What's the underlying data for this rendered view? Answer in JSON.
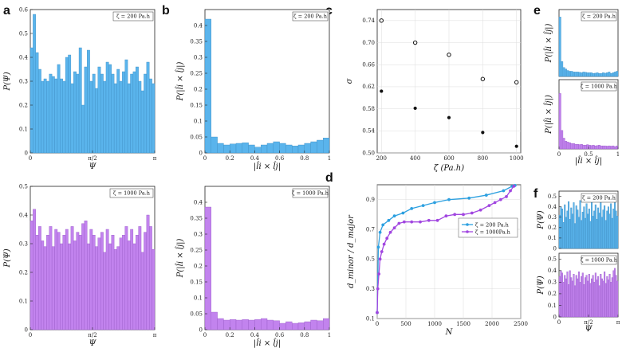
{
  "figure": {
    "panel_labels": [
      "a",
      "b",
      "c",
      "d",
      "e",
      "f"
    ]
  },
  "colors": {
    "blue": "#5ab4ec",
    "blue_edge": "#3f8fc4",
    "purple": "#c283ee",
    "purple_edge": "#9a5cc8",
    "line_blue": "#2da0e0",
    "line_purple": "#a146e0"
  },
  "chart_data": [
    {
      "id": "a_top",
      "type": "bar",
      "legend": "ζ = 200 Pa.h",
      "xlabel": "Ψ",
      "ylabel": "P(Ψ)",
      "ylim": [
        0,
        0.6
      ],
      "yticks": [
        "0",
        "0.1",
        "0.2",
        "0.3",
        "0.4",
        "0.5",
        "0.6"
      ],
      "xticks": [
        "0",
        "π/2",
        "π"
      ],
      "values": [
        0.44,
        0.58,
        0.42,
        0.35,
        0.3,
        0.31,
        0.3,
        0.33,
        0.32,
        0.31,
        0.37,
        0.31,
        0.3,
        0.4,
        0.41,
        0.29,
        0.34,
        0.33,
        0.44,
        0.2,
        0.36,
        0.43,
        0.3,
        0.33,
        0.27,
        0.36,
        0.33,
        0.3,
        0.38,
        0.37,
        0.33,
        0.29,
        0.35,
        0.3,
        0.34,
        0.39,
        0.29,
        0.33,
        0.34,
        0.36,
        0.3,
        0.26,
        0.33,
        0.38,
        0.31,
        0.29
      ]
    },
    {
      "id": "a_bottom",
      "type": "bar",
      "legend": "ζ = 1000 Pa.h",
      "xlabel": "Ψ",
      "ylabel": "P(Ψ)",
      "ylim": [
        0,
        0.5
      ],
      "yticks": [
        "0",
        "0.1",
        "0.2",
        "0.3",
        "0.4",
        "0.5"
      ],
      "xticks": [
        "0",
        "π/2",
        "π"
      ],
      "values": [
        0.38,
        0.42,
        0.33,
        0.36,
        0.31,
        0.29,
        0.33,
        0.36,
        0.29,
        0.35,
        0.34,
        0.3,
        0.33,
        0.35,
        0.3,
        0.36,
        0.31,
        0.34,
        0.33,
        0.37,
        0.38,
        0.3,
        0.35,
        0.33,
        0.29,
        0.32,
        0.34,
        0.27,
        0.35,
        0.3,
        0.33,
        0.28,
        0.29,
        0.32,
        0.33,
        0.36,
        0.31,
        0.35,
        0.3,
        0.33,
        0.36,
        0.27,
        0.34,
        0.4,
        0.36,
        0.28
      ]
    },
    {
      "id": "b_top",
      "type": "bar",
      "legend": "ζ = 200 Pa.h",
      "xlabel": "|l̂i × l̂j|",
      "ylabel": "P(|l̂i × l̂j|)",
      "ylim": [
        0,
        0.45
      ],
      "yticks": [
        "0",
        "0.05",
        "0.1",
        "0.15",
        "0.2",
        "0.25",
        "0.3",
        "0.35",
        "0.4"
      ],
      "xticks": [
        "0",
        "0.2",
        "0.4",
        "0.6",
        "0.8",
        "1"
      ],
      "values": [
        0.42,
        0.05,
        0.03,
        0.025,
        0.028,
        0.03,
        0.032,
        0.025,
        0.018,
        0.025,
        0.03,
        0.035,
        0.03,
        0.025,
        0.022,
        0.025,
        0.03,
        0.035,
        0.04,
        0.047
      ]
    },
    {
      "id": "b_bottom",
      "type": "bar",
      "legend": "ζ = 1000 Pa.h",
      "xlabel": "|l̂i × l̂j|",
      "ylabel": "P(|l̂i × l̂j|)",
      "ylim": [
        0,
        0.45
      ],
      "yticks": [
        "0",
        "0.05",
        "0.1",
        "0.15",
        "0.2",
        "0.25",
        "0.3",
        "0.35",
        "0.4"
      ],
      "xticks": [
        "0",
        "0.2",
        "0.4",
        "0.6",
        "0.8",
        "1"
      ],
      "values": [
        0.385,
        0.055,
        0.035,
        0.03,
        0.032,
        0.03,
        0.032,
        0.03,
        0.032,
        0.035,
        0.03,
        0.028,
        0.02,
        0.025,
        0.02,
        0.022,
        0.025,
        0.03,
        0.028,
        0.035
      ]
    },
    {
      "id": "c",
      "type": "scatter",
      "xlabel": "ζ (Pa.h)",
      "ylabel": "σ",
      "xlim": [
        175,
        1025
      ],
      "ylim": [
        0.5,
        0.76
      ],
      "xticks": [
        "200",
        "400",
        "600",
        "800",
        "1000"
      ],
      "yticks": [
        "0.50",
        "0.54",
        "0.58",
        "0.62",
        "0.66",
        "0.70",
        "0.74"
      ],
      "series": [
        {
          "name": "open",
          "x": [
            200,
            400,
            600,
            800,
            1000
          ],
          "y": [
            0.74,
            0.7,
            0.678,
            0.634,
            0.628
          ]
        },
        {
          "name": "filled",
          "x": [
            200,
            400,
            600,
            800,
            1000
          ],
          "y": [
            0.612,
            0.581,
            0.564,
            0.537,
            0.512
          ]
        }
      ]
    },
    {
      "id": "d",
      "type": "line",
      "xlabel": "N",
      "ylabel": "d_minor / d_major",
      "xlim": [
        0,
        2500
      ],
      "ylim": [
        0.1,
        1.0
      ],
      "xticks": [
        "0",
        "500",
        "1000",
        "1500",
        "2000",
        "2500"
      ],
      "yticks": [
        "0.1",
        "0.3",
        "0.5",
        "0.7",
        "0.9"
      ],
      "series": [
        {
          "name": "ζ = 200  Pa.h",
          "x": [
            0,
            20,
            50,
            100,
            200,
            300,
            450,
            600,
            800,
            1000,
            1250,
            1600,
            1900,
            2200,
            2350,
            2400
          ],
          "y": [
            0.14,
            0.58,
            0.68,
            0.73,
            0.76,
            0.79,
            0.81,
            0.84,
            0.86,
            0.88,
            0.9,
            0.91,
            0.93,
            0.96,
            0.99,
            0.995
          ]
        },
        {
          "name": "ζ = 1000Pa.h",
          "x": [
            0,
            10,
            30,
            50,
            80,
            120,
            170,
            230,
            300,
            380,
            470,
            600,
            750,
            900,
            1050,
            1200,
            1350,
            1500,
            1650,
            1800,
            1950,
            2050,
            2150,
            2250,
            2320,
            2380
          ],
          "y": [
            0.14,
            0.3,
            0.4,
            0.5,
            0.55,
            0.6,
            0.64,
            0.68,
            0.71,
            0.74,
            0.75,
            0.75,
            0.75,
            0.76,
            0.76,
            0.79,
            0.8,
            0.8,
            0.81,
            0.83,
            0.86,
            0.88,
            0.9,
            0.92,
            0.96,
            0.99
          ]
        }
      ]
    },
    {
      "id": "e_top",
      "type": "bar",
      "legend": "ζ = 200 Pa.h",
      "xlabel": "",
      "ylabel": "P(|l̂i × l̂j|)",
      "ylim": [
        0,
        0.45
      ],
      "yticks": [],
      "values": [
        0.4,
        0.1,
        0.06,
        0.05,
        0.04,
        0.035,
        0.035,
        0.03,
        0.03,
        0.03,
        0.028,
        0.025,
        0.03,
        0.028,
        0.025,
        0.025,
        0.025,
        0.02,
        0.022,
        0.025,
        0.02,
        0.02,
        0.025,
        0.022,
        0.025,
        0.03,
        0.02,
        0.025,
        0.03,
        0.035
      ]
    },
    {
      "id": "e_bottom",
      "type": "bar",
      "legend": "ζ = 1000 Pa.h",
      "xlabel": "|l̂i × l̂j|",
      "ylabel": "P(|l̂i × l̂j|)",
      "ylim": [
        0,
        0.45
      ],
      "xticks": [
        "0",
        "0.5",
        "1"
      ],
      "values": [
        0.36,
        0.12,
        0.07,
        0.05,
        0.045,
        0.04,
        0.035,
        0.035,
        0.03,
        0.03,
        0.028,
        0.03,
        0.025,
        0.025,
        0.028,
        0.025,
        0.022,
        0.025,
        0.02,
        0.022,
        0.025,
        0.02,
        0.02,
        0.02,
        0.018,
        0.02,
        0.018,
        0.02,
        0.015,
        0.02
      ]
    },
    {
      "id": "f_top",
      "type": "bar",
      "legend": "ζ = 200 Pa.h",
      "xlabel": "",
      "ylabel": "P(Ψ)",
      "ylim": [
        0,
        0.55
      ],
      "yticks": [
        "0",
        "0.1",
        "0.2",
        "0.3",
        "0.4",
        "0.5"
      ],
      "values": [
        0.32,
        0.4,
        0.38,
        0.25,
        0.42,
        0.3,
        0.36,
        0.45,
        0.28,
        0.39,
        0.33,
        0.44,
        0.24,
        0.41,
        0.37,
        0.3,
        0.46,
        0.27,
        0.35,
        0.4,
        0.29,
        0.43,
        0.33,
        0.38,
        0.26,
        0.45,
        0.31,
        0.36,
        0.42,
        0.28,
        0.39,
        0.34,
        0.44,
        0.3,
        0.37,
        0.41,
        0.27,
        0.36,
        0.4,
        0.33,
        0.43,
        0.29,
        0.38,
        0.44,
        0.36,
        0.31
      ]
    },
    {
      "id": "f_bottom",
      "type": "bar",
      "legend": "ζ = 1000 Pa.h",
      "xlabel": "Ψ",
      "ylabel": "P(Ψ)",
      "ylim": [
        0,
        0.55
      ],
      "yticks": [
        "0",
        "0.1",
        "0.2",
        "0.3",
        "0.4",
        "0.5"
      ],
      "xticks": [
        "0",
        "π/2",
        "π"
      ],
      "values": [
        0.35,
        0.4,
        0.38,
        0.3,
        0.36,
        0.33,
        0.39,
        0.28,
        0.4,
        0.34,
        0.31,
        0.37,
        0.27,
        0.36,
        0.33,
        0.39,
        0.3,
        0.35,
        0.38,
        0.28,
        0.34,
        0.36,
        0.31,
        0.37,
        0.29,
        0.33,
        0.36,
        0.3,
        0.38,
        0.32,
        0.35,
        0.27,
        0.37,
        0.33,
        0.31,
        0.39,
        0.29,
        0.35,
        0.32,
        0.37,
        0.3,
        0.34,
        0.4,
        0.42,
        0.36,
        0.31
      ]
    }
  ]
}
